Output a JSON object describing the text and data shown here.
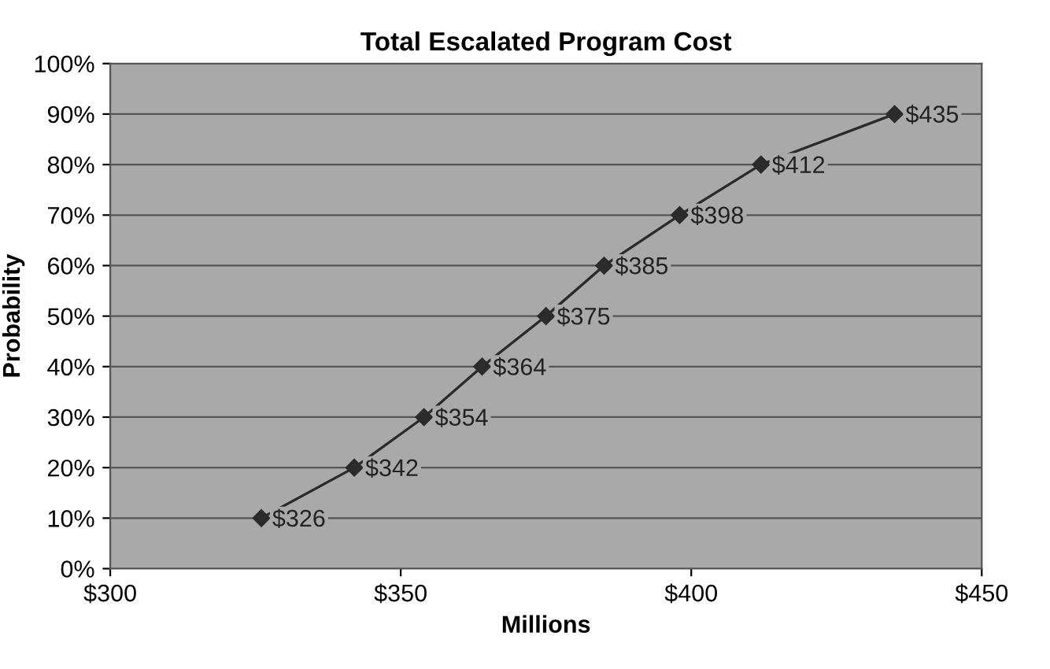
{
  "chart_data": {
    "type": "line",
    "title": "Total Escalated Program Cost",
    "xlabel": "Millions",
    "ylabel": "Probability",
    "series": [
      {
        "color": "#2b2b2b",
        "x": [
          326,
          342,
          354,
          364,
          375,
          385,
          398,
          412,
          435
        ],
        "values": [
          10,
          20,
          30,
          40,
          50,
          60,
          70,
          80,
          90
        ]
      }
    ],
    "annotations": [
      {
        "text": "$326",
        "x": 326,
        "y": 10
      },
      {
        "text": "$342",
        "x": 342,
        "y": 20
      },
      {
        "text": "$354",
        "x": 354,
        "y": 30
      },
      {
        "text": "$364",
        "x": 364,
        "y": 40
      },
      {
        "text": "$375",
        "x": 375,
        "y": 50
      },
      {
        "text": "$385",
        "x": 385,
        "y": 60
      },
      {
        "text": "$398",
        "x": 398,
        "y": 70
      },
      {
        "text": "$412",
        "x": 412,
        "y": 80
      },
      {
        "text": "$435",
        "x": 435,
        "y": 90
      }
    ],
    "xlim": [
      300,
      450
    ],
    "xticks": [
      {
        "value": 300,
        "label": "$300"
      },
      {
        "value": 350,
        "label": "$350"
      },
      {
        "value": 400,
        "label": "$400"
      },
      {
        "value": 450,
        "label": "$450"
      }
    ],
    "ylim": [
      0,
      100
    ],
    "yticks": [
      {
        "value": 0,
        "label": "0%"
      },
      {
        "value": 10,
        "label": "10%"
      },
      {
        "value": 20,
        "label": "20%"
      },
      {
        "value": 30,
        "label": "30%"
      },
      {
        "value": 40,
        "label": "40%"
      },
      {
        "value": 50,
        "label": "50%"
      },
      {
        "value": 60,
        "label": "60%"
      },
      {
        "value": 70,
        "label": "70%"
      },
      {
        "value": 80,
        "label": "80%"
      },
      {
        "value": 90,
        "label": "90%"
      },
      {
        "value": 100,
        "label": "100%"
      }
    ],
    "grid": "y",
    "marker": "diamond",
    "line_style": "solid"
  }
}
